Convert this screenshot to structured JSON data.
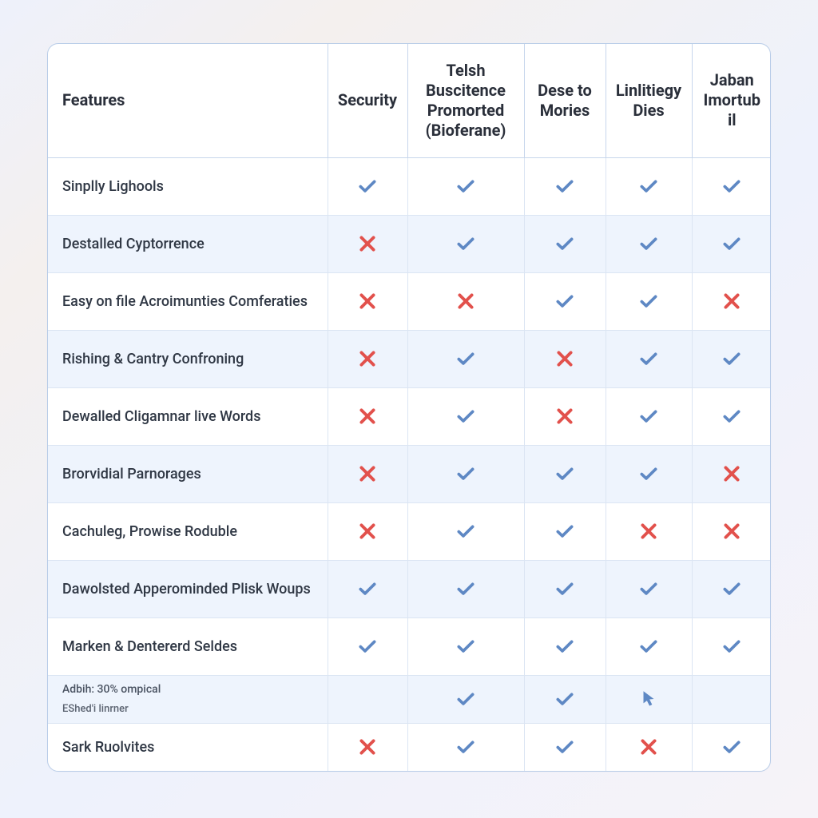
{
  "table": {
    "feature_header": "Features",
    "columns": [
      "Security",
      "Telsh Buscitence Promorted (Bioferane)",
      "Dese to Mories",
      "Linlitiegy Dies",
      "Jaban Imortubil"
    ],
    "rows": [
      {
        "label": "Sinplly Lighools",
        "alt": false,
        "cells": [
          "check",
          "check",
          "check",
          "check",
          "check"
        ]
      },
      {
        "label": "Destalled Cyptorrence",
        "alt": true,
        "cells": [
          "cross",
          "check",
          "check",
          "check",
          "check"
        ]
      },
      {
        "label": "Easy on file Acroimunties Comferaties",
        "alt": false,
        "cells": [
          "cross",
          "cross",
          "check",
          "check",
          "cross"
        ]
      },
      {
        "label": "Rishing & Cantry Confroning",
        "alt": true,
        "cells": [
          "cross",
          "check",
          "cross",
          "check",
          "check"
        ]
      },
      {
        "label": "Dewalled Cligamnar live Words",
        "alt": false,
        "cells": [
          "cross",
          "check",
          "cross",
          "check",
          "check"
        ]
      },
      {
        "label": "Brorvidial Parnorages",
        "alt": true,
        "cells": [
          "cross",
          "check",
          "check",
          "check",
          "cross"
        ]
      },
      {
        "label": "Cachuleg, Prowise Roduble",
        "alt": false,
        "cells": [
          "cross",
          "check",
          "check",
          "cross",
          "cross"
        ]
      },
      {
        "label": "Dawolsted Apperominded Plisk Woups",
        "alt": true,
        "cells": [
          "check",
          "check",
          "check",
          "check",
          "check"
        ]
      },
      {
        "label": "Marken & Dentererd Seldes",
        "alt": false,
        "cells": [
          "check",
          "check",
          "check",
          "check",
          "check"
        ]
      },
      {
        "label": "Adbih: 30% ompical",
        "sublabel": "EShed'i linrner",
        "alt": true,
        "small": true,
        "short": true,
        "cells": [
          "",
          "check",
          "check",
          "pointer",
          ""
        ]
      },
      {
        "label": "Sark Ruolvites",
        "alt": false,
        "short": true,
        "cells": [
          "cross",
          "check",
          "check",
          "cross",
          "check"
        ]
      }
    ],
    "colors": {
      "check": "#5e88c4",
      "cross": "#e2514c",
      "pointer": "#5e88c4",
      "border": "#c7d6ec",
      "alt_row": "#eef4fd",
      "text": "#2f3744"
    }
  }
}
